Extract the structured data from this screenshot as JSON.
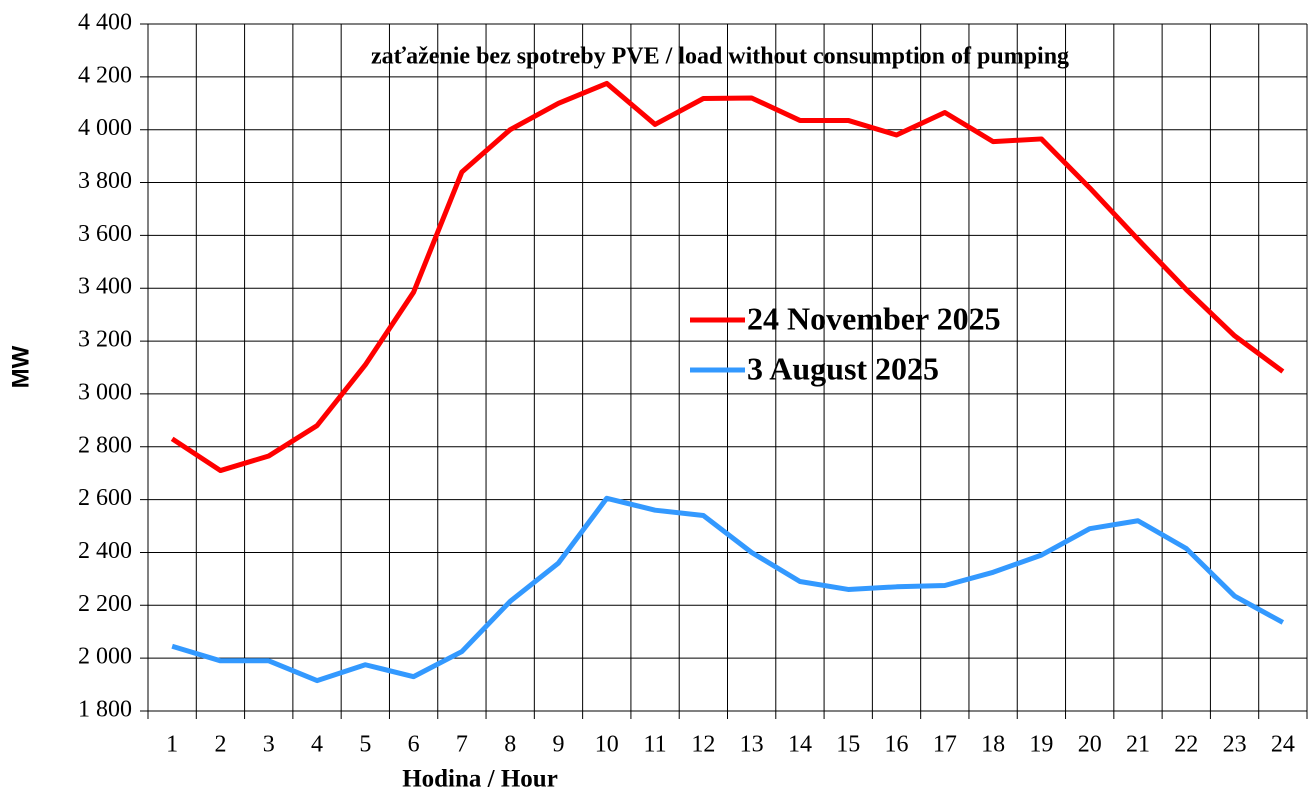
{
  "chart_data": {
    "type": "line",
    "title": "zaťaženie bez spotreby PVE / load without consumption of pumping",
    "x_label": "Hodina  / Hour",
    "y_label": "MW",
    "categories": [
      "1",
      "2",
      "3",
      "4",
      "5",
      "6",
      "7",
      "8",
      "9",
      "10",
      "11",
      "12",
      "13",
      "14",
      "15",
      "16",
      "17",
      "18",
      "19",
      "20",
      "21",
      "22",
      "23",
      "24"
    ],
    "series": [
      {
        "name": "24 November 2025",
        "color": "#ff0000",
        "values": [
          2830,
          2710,
          2765,
          2880,
          3110,
          3385,
          3840,
          4000,
          4100,
          4175,
          4020,
          4118,
          4120,
          4035,
          4035,
          3980,
          4065,
          3955,
          3965,
          3780,
          3585,
          3395,
          3220,
          3085
        ]
      },
      {
        "name": "3 August 2025",
        "color": "#3399ff",
        "values": [
          2045,
          1990,
          1990,
          1915,
          1975,
          1930,
          2025,
          2215,
          2360,
          2605,
          2560,
          2540,
          2400,
          2290,
          2260,
          2270,
          2275,
          2325,
          2390,
          2490,
          2520,
          2415,
          2235,
          2135
        ]
      }
    ],
    "ylim": [
      1800,
      4400
    ],
    "yticks": [
      {
        "value": 1800,
        "label": "1 800"
      },
      {
        "value": 2000,
        "label": "2 000"
      },
      {
        "value": 2200,
        "label": "2 200"
      },
      {
        "value": 2400,
        "label": "2 400"
      },
      {
        "value": 2600,
        "label": "2 600"
      },
      {
        "value": 2800,
        "label": "2 800"
      },
      {
        "value": 3000,
        "label": "3 000"
      },
      {
        "value": 3200,
        "label": "3 200"
      },
      {
        "value": 3400,
        "label": "3 400"
      },
      {
        "value": 3600,
        "label": "3 600"
      },
      {
        "value": 3800,
        "label": "3 800"
      },
      {
        "value": 4000,
        "label": "4 000"
      },
      {
        "value": 4200,
        "label": "4 200"
      },
      {
        "value": 4400,
        "label": "4 400"
      }
    ],
    "grid": true
  }
}
